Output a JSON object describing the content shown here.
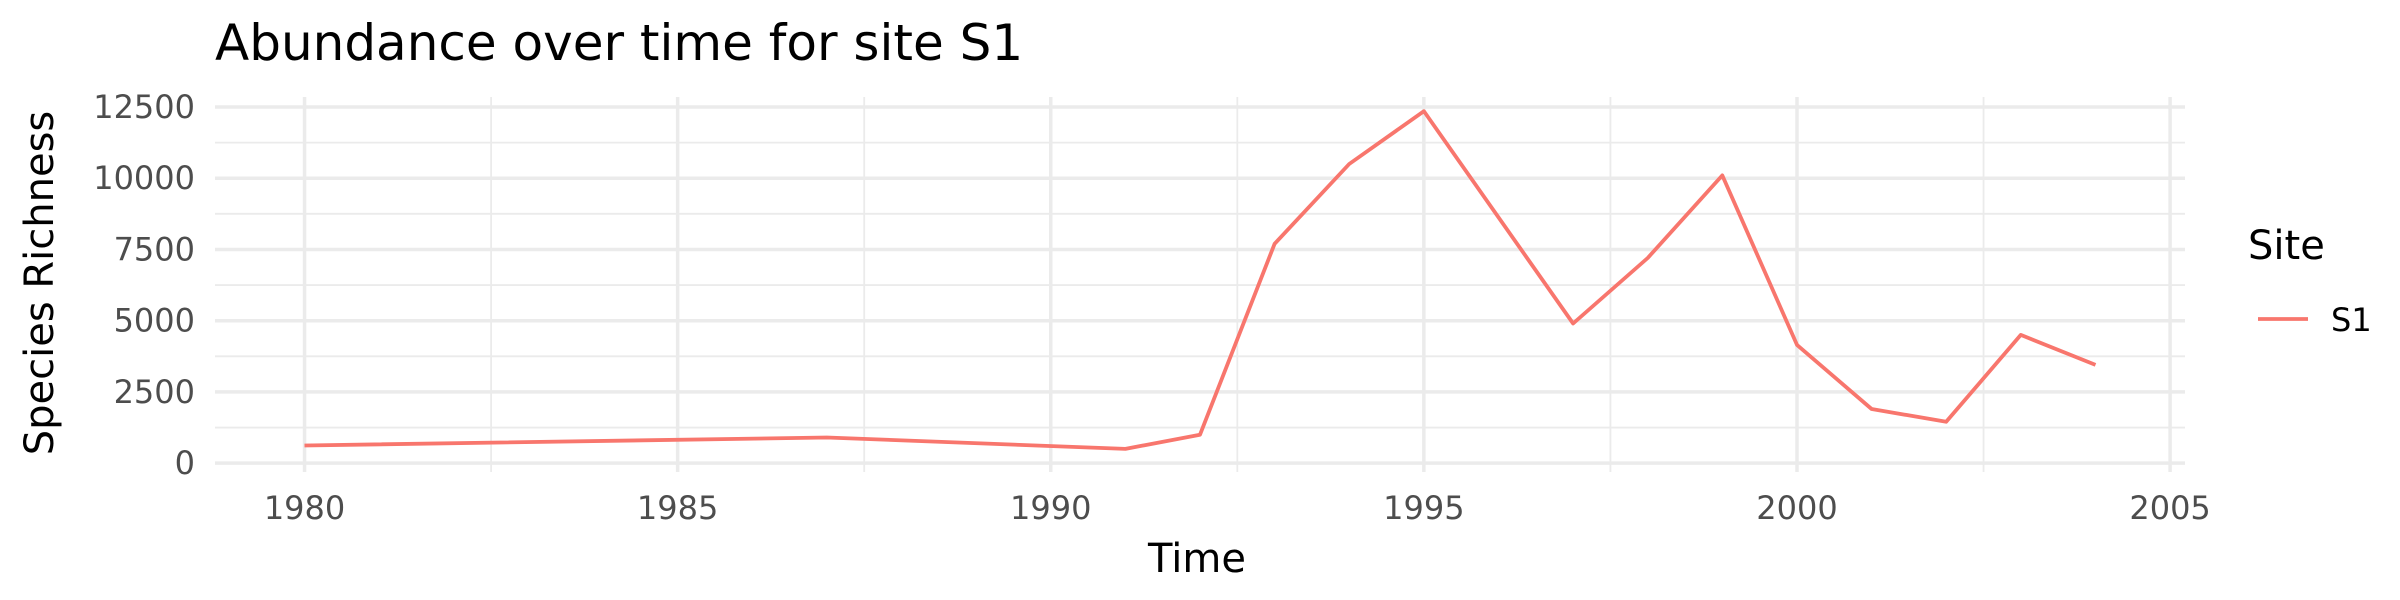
{
  "chart_data": {
    "type": "line",
    "title": "Abundance over time for site S1",
    "xlabel": "Time",
    "ylabel": "Species Richness",
    "xlim": [
      1978.8,
      2005.2
    ],
    "ylim": [
      -310,
      12850
    ],
    "x_ticks": [
      1980,
      1985,
      1990,
      1995,
      2000,
      2005
    ],
    "y_ticks": [
      0,
      2500,
      5000,
      7500,
      10000,
      12500
    ],
    "x_tick_labels": [
      "1980",
      "1985",
      "1990",
      "1995",
      "2000",
      "2005"
    ],
    "y_tick_labels": [
      "0",
      "2500",
      "5000",
      "7500",
      "10000",
      "12500"
    ],
    "grid": true,
    "legend": {
      "title": "Site",
      "position": "right"
    },
    "series": [
      {
        "name": "S1",
        "color": "#F8766D",
        "x": [
          1980,
          1987,
          1991,
          1992,
          1993,
          1994,
          1995,
          1997,
          1998,
          1999,
          2000,
          2001,
          2002,
          2003,
          2004
        ],
        "y": [
          620,
          900,
          500,
          1000,
          7700,
          10500,
          12350,
          4900,
          7200,
          10100,
          4150,
          1900,
          1450,
          4500,
          3450
        ]
      }
    ]
  }
}
